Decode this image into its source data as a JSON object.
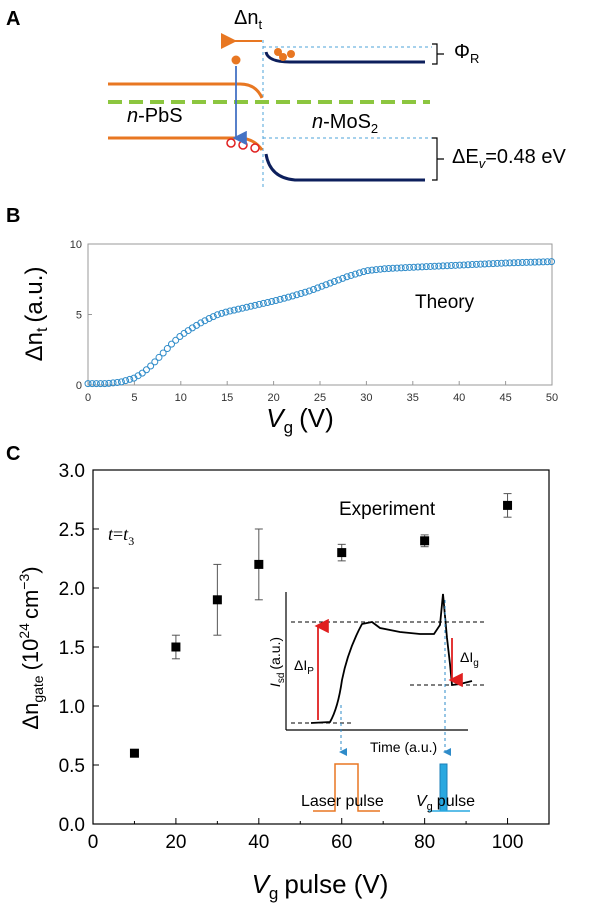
{
  "panel_a": {
    "letter": "A",
    "delta_n_label": "Δn",
    "delta_n_sub": "t",
    "phi_label": "Φ",
    "phi_sub": "R",
    "pbs_prefix": "n",
    "pbs_label": "-PbS",
    "mos2_prefix": "n",
    "mos2_label": "-MoS",
    "mos2_sub": "2",
    "delta_ev_label": "ΔE",
    "delta_ev_sub": "v",
    "delta_ev_value": "=0.48 eV",
    "colors": {
      "pbs": "#E87722",
      "mos2": "#0D1F5C",
      "fermi": "#8CC63F",
      "dashed": "#4EA3DA",
      "arrow": "#4472C4"
    }
  },
  "chart_data": [
    {
      "type": "scatter",
      "panel": "B",
      "xlabel": "V",
      "xlabel_sub": "g",
      "xlabel_unit": "(V)",
      "ylabel": "Δn",
      "ylabel_sub": "t",
      "ylabel_unit": "(a.u.)",
      "annotation": "Theory",
      "xlim": [
        0,
        50
      ],
      "ylim": [
        0,
        10
      ],
      "x_ticks": [
        0,
        5,
        10,
        15,
        20,
        25,
        30,
        35,
        40,
        45,
        50
      ],
      "y_ticks": [
        0,
        5,
        10
      ],
      "marker_color": "#2E8BC9",
      "curve_points": [
        [
          0,
          0.1
        ],
        [
          2,
          0.1
        ],
        [
          3.5,
          0.2
        ],
        [
          5,
          0.5
        ],
        [
          6,
          0.9
        ],
        [
          7,
          1.5
        ],
        [
          8,
          2.2
        ],
        [
          9,
          2.9
        ],
        [
          10,
          3.5
        ],
        [
          11,
          3.95
        ],
        [
          12,
          4.35
        ],
        [
          13,
          4.7
        ],
        [
          14,
          5.0
        ],
        [
          15,
          5.2
        ],
        [
          16,
          5.35
        ],
        [
          17,
          5.5
        ],
        [
          18,
          5.65
        ],
        [
          19,
          5.8
        ],
        [
          20,
          5.95
        ],
        [
          22,
          6.3
        ],
        [
          24,
          6.7
        ],
        [
          26,
          7.2
        ],
        [
          28,
          7.7
        ],
        [
          30,
          8.1
        ],
        [
          32,
          8.25
        ],
        [
          35,
          8.35
        ],
        [
          40,
          8.5
        ],
        [
          45,
          8.65
        ],
        [
          50,
          8.75
        ]
      ],
      "point_spacing": 0.45
    },
    {
      "type": "scatter",
      "panel": "C",
      "xlabel": "V",
      "xlabel_sub": "g",
      "xlabel_unit": "pulse (V)",
      "ylabel": "Δn",
      "ylabel_sub": "gate",
      "ylabel_unit_pre": "(10",
      "ylabel_unit_exp": "24",
      "ylabel_unit_mid": "cm",
      "ylabel_unit_exp2": "−3",
      "ylabel_unit_post": ")",
      "condition_t": "t",
      "condition_eq": "=",
      "condition_t3": "t",
      "condition_sub": "3",
      "annotation": "Experiment",
      "xlim": [
        0,
        110
      ],
      "ylim": [
        0,
        3.0
      ],
      "x_ticks": [
        0,
        20,
        40,
        60,
        80,
        100
      ],
      "y_ticks": [
        0.0,
        0.5,
        1.0,
        1.5,
        2.0,
        2.5,
        3.0
      ],
      "y_tick_labels": [
        "0.0",
        "0.5",
        "1.0",
        "1.5",
        "2.0",
        "2.5",
        "3.0"
      ],
      "x": [
        10,
        20,
        30,
        40,
        60,
        80,
        100
      ],
      "y": [
        0.6,
        1.5,
        1.9,
        2.2,
        2.3,
        2.4,
        2.7
      ],
      "err": [
        0.03,
        0.1,
        0.3,
        0.3,
        0.07,
        0.05,
        0.1
      ]
    }
  ],
  "inset": {
    "ylabel": "I",
    "ylabel_sub": "sd",
    "ylabel_unit": "(a.u.)",
    "xlabel": "Time (a.u.)",
    "dip_label": "ΔI",
    "dip_sub": "P",
    "dig_label": "ΔI",
    "dig_sub": "g",
    "laser_label": "Laser pulse",
    "vg_label": "V",
    "vg_sub": "g",
    "vg_suffix": "pulse"
  },
  "panel_b_letter": "B",
  "panel_c_letter": "C"
}
